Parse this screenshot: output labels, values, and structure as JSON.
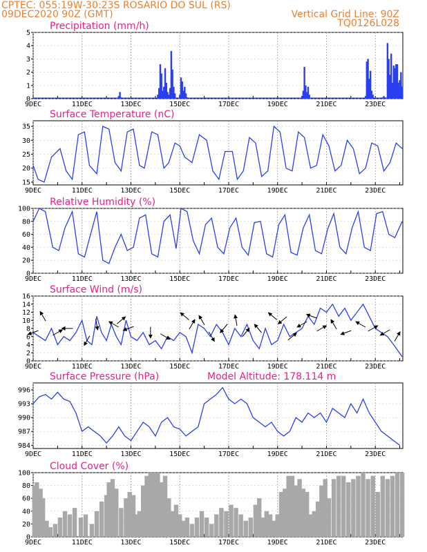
{
  "header": {
    "line1": "CPTEC:   055:19W-30:23S   ROSARIO DO SUL (RS)",
    "line2": "09DEC2020 90Z (GMT)",
    "grid_note": "Vertical Grid Line: 90Z",
    "code": "TQ0126L028"
  },
  "x_axis_labels": [
    "9DEC",
    "11DEC",
    "13DEC",
    "15DEC",
    "17DEC",
    "19DEC",
    "21DEC",
    "23DEC"
  ],
  "x_axis_label_days": [
    9,
    11,
    13,
    15,
    17,
    19,
    21,
    23
  ],
  "x_axis_range_days": [
    9,
    24.125
  ],
  "colors": {
    "series": "#2a3ff0",
    "title": "#e8208c",
    "header": "#ee7f2d",
    "cloud": "#a8a8a8",
    "arrow": "#000000"
  },
  "chart_data": [
    {
      "id": "precip",
      "type": "bar",
      "title": "Precipitation (mm/h)",
      "ylim": [
        0,
        5
      ],
      "yticks": [
        0,
        1,
        2,
        3,
        4,
        5
      ],
      "ytick_labels": [
        "0",
        "1",
        "2",
        "3",
        "4",
        "5"
      ],
      "x_days": [
        12.5,
        12.55,
        12.6,
        14.1,
        14.15,
        14.2,
        14.25,
        14.3,
        14.35,
        14.4,
        14.45,
        14.5,
        14.55,
        14.6,
        14.65,
        14.7,
        14.75,
        14.8,
        15.0,
        15.05,
        15.1,
        15.15,
        15.2,
        15.25,
        15.3,
        20.0,
        20.05,
        20.1,
        20.15,
        20.2,
        20.25,
        20.3,
        22.6,
        22.65,
        22.7,
        22.75,
        22.8,
        22.85,
        22.9,
        23.3,
        23.35,
        23.4,
        23.5,
        23.55,
        23.6,
        23.65,
        23.7,
        23.75,
        23.8,
        23.85,
        23.9,
        23.95,
        24.0,
        24.05,
        24.1
      ],
      "values": [
        0.2,
        0.5,
        0.1,
        0.3,
        0.8,
        2.6,
        1.9,
        0.6,
        0.9,
        2.3,
        1.2,
        0.5,
        0.3,
        0.8,
        3.6,
        2.2,
        0.9,
        0.4,
        0.3,
        1.6,
        1.3,
        0.6,
        0.9,
        0.4,
        0.1,
        0.2,
        0.6,
        2.4,
        1.0,
        0.5,
        0.9,
        0.3,
        0.2,
        2.8,
        3.0,
        1.5,
        2.1,
        0.6,
        0.3,
        0.1,
        0.2,
        0.1,
        4.2,
        3.0,
        1.8,
        3.4,
        1.2,
        2.5,
        2.3,
        2.6,
        2.6,
        1.2,
        1.4,
        2.0,
        0.9
      ]
    },
    {
      "id": "temp",
      "type": "line",
      "title": "Surface Temperature (nC)",
      "ylim": [
        14,
        37
      ],
      "yticks": [
        15,
        20,
        25,
        30,
        35
      ],
      "ytick_labels": [
        "15",
        "20",
        "25",
        "30",
        "35"
      ],
      "x_days": [
        9.0,
        9.2,
        9.45,
        9.75,
        10.1,
        10.35,
        10.6,
        10.85,
        11.1,
        11.3,
        11.6,
        11.85,
        12.1,
        12.35,
        12.6,
        12.85,
        13.1,
        13.35,
        13.55,
        13.85,
        14.1,
        14.35,
        14.55,
        14.8,
        15.0,
        15.2,
        15.5,
        15.8,
        16.1,
        16.35,
        16.6,
        16.85,
        17.15,
        17.35,
        17.6,
        17.85,
        18.1,
        18.35,
        18.6,
        18.85,
        19.1,
        19.35,
        19.6,
        19.85,
        20.1,
        20.35,
        20.6,
        20.85,
        21.1,
        21.35,
        21.6,
        21.85,
        22.1,
        22.35,
        22.6,
        22.85,
        23.1,
        23.35,
        23.6,
        23.85,
        24.1
      ],
      "values": [
        21,
        16,
        15,
        24,
        27,
        19,
        16,
        32,
        33,
        21,
        18,
        35,
        34,
        22,
        19,
        33,
        34,
        21,
        20,
        33,
        32,
        20,
        22,
        29,
        28,
        24,
        22,
        32,
        30,
        19,
        16,
        26,
        26,
        16,
        19,
        31,
        29,
        17,
        19,
        35,
        33,
        20,
        19,
        33,
        31,
        20,
        21,
        32,
        28,
        19,
        21,
        30,
        27,
        18,
        20,
        29,
        28,
        19,
        22,
        29,
        27
      ]
    },
    {
      "id": "rh",
      "type": "line",
      "title": "Relative Humidity (%)",
      "ylim": [
        0,
        100
      ],
      "yticks": [
        0,
        20,
        40,
        60,
        80,
        100
      ],
      "ytick_labels": [
        "0",
        "20",
        "40",
        "60",
        "80",
        "100"
      ],
      "x_days": [
        9.0,
        9.25,
        9.5,
        9.8,
        10.05,
        10.3,
        10.6,
        10.85,
        11.1,
        11.35,
        11.6,
        11.85,
        12.1,
        12.35,
        12.6,
        12.85,
        13.1,
        13.35,
        13.6,
        13.85,
        14.1,
        14.35,
        14.6,
        14.85,
        15.05,
        15.3,
        15.55,
        15.8,
        16.05,
        16.3,
        16.55,
        16.8,
        17.05,
        17.3,
        17.55,
        17.8,
        18.05,
        18.3,
        18.55,
        18.8,
        19.05,
        19.3,
        19.55,
        19.8,
        20.05,
        20.3,
        20.55,
        20.8,
        21.05,
        21.3,
        21.55,
        21.8,
        22.05,
        22.3,
        22.55,
        22.8,
        23.05,
        23.3,
        23.55,
        23.8,
        24.1
      ],
      "values": [
        80,
        100,
        95,
        40,
        35,
        70,
        95,
        30,
        25,
        60,
        95,
        20,
        15,
        40,
        60,
        35,
        40,
        85,
        90,
        30,
        25,
        80,
        90,
        38,
        100,
        95,
        50,
        30,
        75,
        85,
        40,
        30,
        70,
        85,
        40,
        28,
        78,
        80,
        30,
        25,
        75,
        90,
        32,
        28,
        70,
        90,
        35,
        30,
        68,
        92,
        40,
        30,
        70,
        95,
        40,
        35,
        92,
        95,
        60,
        55,
        80
      ]
    },
    {
      "id": "wind",
      "type": "line",
      "title": "Surface Wind (m/s)",
      "ylim": [
        0,
        16
      ],
      "yticks": [
        0,
        2,
        4,
        6,
        8,
        10,
        12,
        14,
        16
      ],
      "ytick_labels": [
        "0",
        "2",
        "4",
        "6",
        "8",
        "10",
        "12",
        "14",
        "16"
      ],
      "x_days": [
        9.0,
        9.25,
        9.5,
        9.75,
        10.0,
        10.25,
        10.5,
        10.75,
        11.0,
        11.2,
        11.4,
        11.6,
        11.8,
        12.0,
        12.2,
        12.4,
        12.6,
        12.8,
        13.0,
        13.25,
        13.5,
        13.75,
        14.0,
        14.25,
        14.5,
        14.75,
        15.0,
        15.25,
        15.5,
        15.75,
        16.0,
        16.25,
        16.5,
        16.75,
        17.0,
        17.25,
        17.5,
        17.75,
        18.0,
        18.25,
        18.5,
        18.75,
        19.0,
        19.25,
        19.5,
        19.75,
        20.0,
        20.25,
        20.5,
        20.75,
        21.0,
        21.25,
        21.5,
        21.75,
        22.0,
        22.25,
        22.5,
        22.75,
        23.0,
        23.25,
        23.5,
        23.75,
        24.1
      ],
      "values": [
        7,
        6,
        5,
        8,
        4,
        6,
        5,
        7,
        10,
        5,
        4,
        11,
        7,
        5,
        9,
        6,
        4,
        10,
        6,
        5,
        7,
        4,
        5,
        3,
        6,
        5,
        7,
        6,
        2,
        9,
        8,
        6,
        9,
        7,
        4,
        8,
        6,
        9,
        5,
        3,
        8,
        4,
        5,
        9,
        6,
        7,
        8,
        11,
        9,
        13,
        12,
        14,
        11,
        13,
        10,
        12,
        14,
        11,
        8,
        7,
        6,
        4,
        1
      ]
    },
    {
      "id": "pressure",
      "type": "line",
      "title": "Surface Pressure (hPa)",
      "annotation": "Model Altitude: 178.114 m",
      "ylim": [
        983.3,
        997.5
      ],
      "yticks": [
        984,
        987,
        990,
        993,
        996
      ],
      "ytick_labels": [
        "984",
        "987",
        "990",
        "993",
        "996"
      ],
      "x_days": [
        9.0,
        9.25,
        9.5,
        9.75,
        10.0,
        10.25,
        10.5,
        10.75,
        11.0,
        11.25,
        11.5,
        11.75,
        12.0,
        12.25,
        12.5,
        12.75,
        13.0,
        13.25,
        13.5,
        13.75,
        14.0,
        14.25,
        14.5,
        14.75,
        15.0,
        15.25,
        15.5,
        15.75,
        16.0,
        16.25,
        16.5,
        16.75,
        17.0,
        17.25,
        17.5,
        17.75,
        18.0,
        18.25,
        18.5,
        18.75,
        19.0,
        19.25,
        19.5,
        19.75,
        20.0,
        20.25,
        20.5,
        20.75,
        21.0,
        21.25,
        21.5,
        21.75,
        22.0,
        22.25,
        22.5,
        22.75,
        23.0,
        23.25,
        23.5,
        23.75,
        24.0
      ],
      "values": [
        993,
        994.5,
        995,
        994,
        995.5,
        994,
        993.5,
        991,
        987,
        988,
        987,
        986,
        984.5,
        986,
        988,
        986,
        985,
        987,
        989,
        988,
        986,
        989,
        990,
        988,
        987.5,
        986,
        987,
        988,
        993,
        994,
        995,
        996.5,
        994,
        993,
        994,
        993,
        990,
        989,
        988,
        989,
        987,
        986,
        987,
        990,
        989,
        991,
        990,
        991,
        989,
        992,
        991,
        990,
        993,
        991,
        994,
        991,
        989,
        987,
        986,
        985,
        984
      ]
    },
    {
      "id": "cloud",
      "type": "area",
      "title": "Cloud Cover (%)",
      "ylim": [
        0,
        100
      ],
      "yticks": [
        0,
        20,
        40,
        60,
        80,
        100
      ],
      "ytick_labels": [
        "0",
        "20",
        "40",
        "60",
        "80",
        "100"
      ],
      "x_days": [
        9.05,
        9.15,
        9.3,
        9.4,
        9.55,
        9.7,
        9.9,
        10.1,
        10.3,
        10.5,
        10.7,
        10.95,
        11.15,
        11.4,
        11.6,
        11.8,
        12.0,
        12.1,
        12.25,
        12.4,
        12.6,
        12.8,
        12.95,
        13.1,
        13.25,
        13.35,
        13.5,
        13.65,
        13.8,
        13.95,
        14.1,
        14.25,
        14.4,
        14.55,
        14.7,
        14.85,
        15.0,
        15.15,
        15.3,
        15.5,
        15.7,
        15.9,
        16.1,
        16.3,
        16.5,
        16.7,
        16.9,
        17.1,
        17.3,
        17.5,
        17.7,
        17.9,
        18.1,
        18.25,
        18.4,
        18.55,
        18.7,
        18.85,
        19.0,
        19.15,
        19.3,
        19.45,
        19.6,
        19.75,
        19.9,
        20.05,
        20.2,
        20.35,
        20.5,
        20.65,
        20.8,
        20.95,
        21.1,
        21.3,
        21.5,
        21.7,
        21.9,
        22.1,
        22.3,
        22.5,
        22.7,
        22.9,
        23.1,
        23.3,
        23.5,
        23.7,
        23.9,
        24.1
      ],
      "values": [
        80,
        85,
        75,
        60,
        25,
        15,
        20,
        30,
        40,
        35,
        45,
        30,
        35,
        20,
        40,
        55,
        65,
        85,
        90,
        75,
        45,
        60,
        70,
        65,
        35,
        40,
        80,
        95,
        100,
        100,
        100,
        85,
        95,
        60,
        40,
        50,
        35,
        25,
        30,
        20,
        30,
        40,
        30,
        20,
        35,
        45,
        40,
        50,
        45,
        35,
        25,
        30,
        50,
        60,
        30,
        40,
        35,
        25,
        35,
        70,
        75,
        95,
        95,
        80,
        90,
        75,
        70,
        35,
        40,
        55,
        80,
        90,
        60,
        90,
        95,
        95,
        85,
        90,
        95,
        100,
        90,
        95,
        70,
        95,
        90,
        95,
        100,
        100
      ]
    }
  ],
  "wind_arrows": {
    "note_hidden": false,
    "points": [
      {
        "day": 9.0,
        "speed": 7,
        "dir_deg": 200
      },
      {
        "day": 9.4,
        "speed": 11,
        "dir_deg": 120
      },
      {
        "day": 10.0,
        "speed": 7,
        "dir_deg": 30
      },
      {
        "day": 10.4,
        "speed": 8,
        "dir_deg": 180
      },
      {
        "day": 11.2,
        "speed": 5,
        "dir_deg": 240
      },
      {
        "day": 11.6,
        "speed": 9,
        "dir_deg": 280
      },
      {
        "day": 12.3,
        "speed": 9,
        "dir_deg": 150
      },
      {
        "day": 12.6,
        "speed": 10,
        "dir_deg": 40
      },
      {
        "day": 12.9,
        "speed": 8,
        "dir_deg": 200
      },
      {
        "day": 13.8,
        "speed": 7,
        "dir_deg": 270
      },
      {
        "day": 14.4,
        "speed": 6,
        "dir_deg": 330
      },
      {
        "day": 15.2,
        "speed": 11,
        "dir_deg": 140
      },
      {
        "day": 15.5,
        "speed": 9,
        "dir_deg": 60
      },
      {
        "day": 15.9,
        "speed": 10,
        "dir_deg": 120
      },
      {
        "day": 16.3,
        "speed": 6,
        "dir_deg": 300
      },
      {
        "day": 16.8,
        "speed": 8,
        "dir_deg": 230
      },
      {
        "day": 17.3,
        "speed": 10,
        "dir_deg": 100
      },
      {
        "day": 17.7,
        "speed": 7,
        "dir_deg": 50
      },
      {
        "day": 18.2,
        "speed": 8,
        "dir_deg": 130
      },
      {
        "day": 18.8,
        "speed": 11,
        "dir_deg": 140
      },
      {
        "day": 19.2,
        "speed": 10,
        "dir_deg": 220
      },
      {
        "day": 19.6,
        "speed": 6,
        "dir_deg": 40
      },
      {
        "day": 20.0,
        "speed": 9,
        "dir_deg": 210
      },
      {
        "day": 20.4,
        "speed": 11,
        "dir_deg": 160
      },
      {
        "day": 20.8,
        "speed": 8,
        "dir_deg": 30
      },
      {
        "day": 21.3,
        "speed": 9,
        "dir_deg": 120
      },
      {
        "day": 21.8,
        "speed": 7,
        "dir_deg": 200
      },
      {
        "day": 22.4,
        "speed": 9,
        "dir_deg": 150
      },
      {
        "day": 22.9,
        "speed": 8,
        "dir_deg": 30
      },
      {
        "day": 23.4,
        "speed": 7,
        "dir_deg": 210
      },
      {
        "day": 23.9,
        "speed": 6,
        "dir_deg": 60
      }
    ]
  }
}
